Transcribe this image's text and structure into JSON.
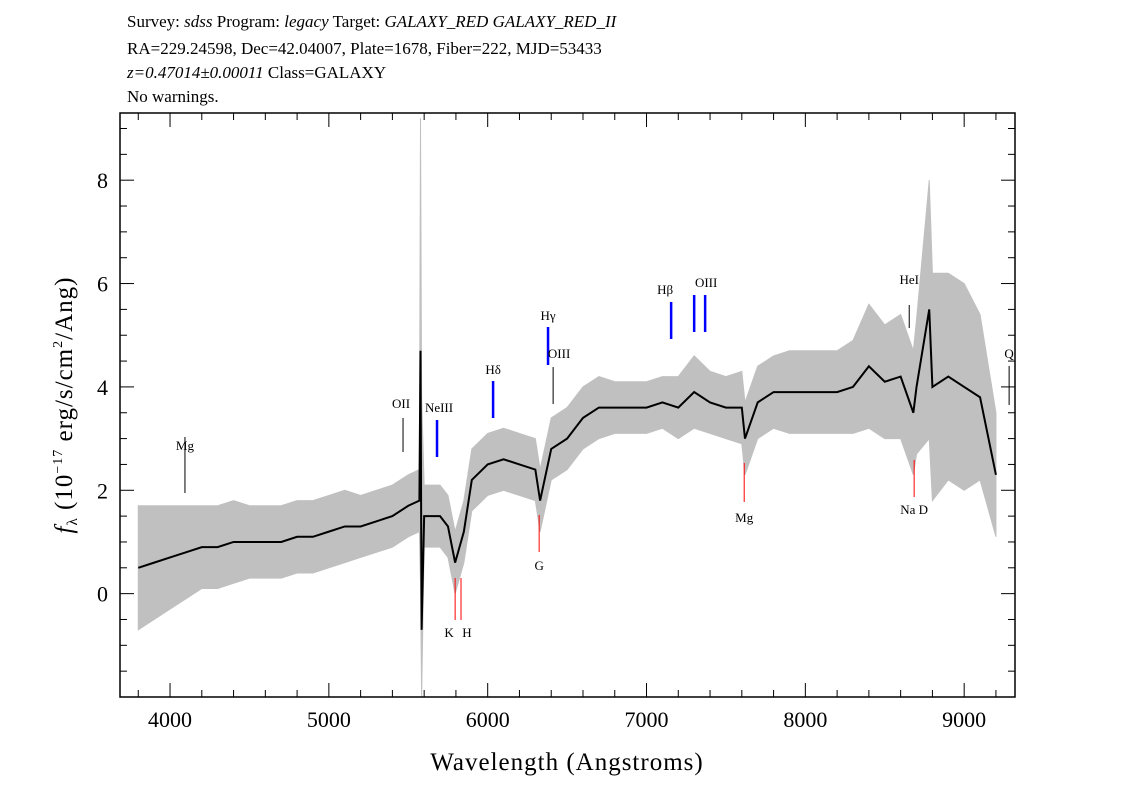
{
  "header": {
    "line1": {
      "survey_label": "Survey:",
      "survey": "sdss",
      "program_label": "Program:",
      "program": "legacy",
      "target_label": "Target:",
      "target": "GALAXY_RED GALAXY_RED_II"
    },
    "line2": "RA=229.24598, Dec=42.04007, Plate=1678, Fiber=222, MJD=53433",
    "line3": {
      "redshift": "z=0.47014±0.00011",
      "class": "Class=GALAXY"
    },
    "line4": "No warnings."
  },
  "chart_data": {
    "type": "line",
    "xlabel": "Wavelength (Angstroms)",
    "ylabel": "f_λ (10^-17 erg/s/cm^2/Ang)",
    "xlim": [
      3685,
      9320
    ],
    "ylim": [
      -2.0,
      9.3
    ],
    "xticks": [
      4000,
      5000,
      6000,
      7000,
      8000,
      9000
    ],
    "yticks": [
      0,
      2,
      4,
      6,
      8
    ],
    "grid": false,
    "series": [
      {
        "role": "flux",
        "color": "#000000",
        "x": [
          3800,
          3900,
          4000,
          4100,
          4200,
          4300,
          4400,
          4500,
          4600,
          4700,
          4800,
          4900,
          5000,
          5100,
          5200,
          5300,
          5400,
          5500,
          5570,
          5577,
          5584,
          5600,
          5700,
          5750,
          5795,
          5850,
          5900,
          6000,
          6100,
          6200,
          6300,
          6330,
          6400,
          6500,
          6600,
          6700,
          6800,
          6900,
          7000,
          7100,
          7200,
          7300,
          7400,
          7500,
          7600,
          7620,
          7700,
          7800,
          7900,
          8000,
          8100,
          8200,
          8300,
          8400,
          8500,
          8600,
          8680,
          8700,
          8780,
          8800,
          8900,
          9000,
          9100,
          9200
        ],
        "y": [
          0.5,
          0.6,
          0.7,
          0.8,
          0.9,
          0.9,
          1.0,
          1.0,
          1.0,
          1.0,
          1.1,
          1.1,
          1.2,
          1.3,
          1.3,
          1.4,
          1.5,
          1.7,
          1.8,
          4.7,
          -0.7,
          1.5,
          1.5,
          1.3,
          0.6,
          1.2,
          2.2,
          2.5,
          2.6,
          2.5,
          2.4,
          1.8,
          2.8,
          3.0,
          3.4,
          3.6,
          3.6,
          3.6,
          3.6,
          3.7,
          3.6,
          3.9,
          3.7,
          3.6,
          3.6,
          3.0,
          3.7,
          3.9,
          3.9,
          3.9,
          3.9,
          3.9,
          4.0,
          4.4,
          4.1,
          4.2,
          3.5,
          4.0,
          5.5,
          4.0,
          4.2,
          4.0,
          3.8,
          2.3
        ]
      },
      {
        "role": "error",
        "color": "#c0c0c0",
        "sigma": [
          1.2,
          1.1,
          1.0,
          0.9,
          0.8,
          0.8,
          0.8,
          0.7,
          0.7,
          0.7,
          0.7,
          0.7,
          0.7,
          0.7,
          0.6,
          0.6,
          0.6,
          0.6,
          0.6,
          4.5,
          4.5,
          0.6,
          0.6,
          0.6,
          0.6,
          0.6,
          0.6,
          0.6,
          0.6,
          0.6,
          0.6,
          0.6,
          0.6,
          0.6,
          0.6,
          0.6,
          0.5,
          0.5,
          0.5,
          0.5,
          0.6,
          0.7,
          0.6,
          0.6,
          0.7,
          0.7,
          0.7,
          0.7,
          0.8,
          0.8,
          0.8,
          0.8,
          0.9,
          1.2,
          1.1,
          1.2,
          1.2,
          1.3,
          2.5,
          2.2,
          2.0,
          2.0,
          1.6,
          1.2
        ]
      }
    ],
    "line_markers": [
      {
        "label": "Mg",
        "wavelength": 4094,
        "color": "#000000"
      },
      {
        "label": "OII",
        "wavelength": 5467,
        "color": "#000000"
      },
      {
        "label": "NeIII",
        "wavelength": 5681,
        "color": "#0000ff"
      },
      {
        "label": "Hδ",
        "wavelength": 6034,
        "color": "#0000ff"
      },
      {
        "label": "Hγ",
        "wavelength": 6380,
        "color": "#0000ff"
      },
      {
        "label": "OIII",
        "wavelength": 6412,
        "color": "#000000"
      },
      {
        "label": "Hβ",
        "wavelength": 7155,
        "color": "#0000ff"
      },
      {
        "label": "OIII",
        "wavelength": 7300,
        "color": "#0000ff"
      },
      {
        "label": "",
        "wavelength": 7369,
        "color": "#0000ff"
      },
      {
        "label": "HeI",
        "wavelength": 8654,
        "color": "#000000"
      },
      {
        "label": "Q",
        "wavelength": 9283,
        "color": "#000000"
      },
      {
        "label": "K",
        "wavelength": 5795,
        "color": "#ff0000"
      },
      {
        "label": "H",
        "wavelength": 5832,
        "color": "#ff0000"
      },
      {
        "label": "G",
        "wavelength": 6324,
        "color": "#ff0000"
      },
      {
        "label": "Mg",
        "wavelength": 7615,
        "color": "#ff0000"
      },
      {
        "label": "Na  D",
        "wavelength": 8685,
        "color": "#ff0000"
      }
    ]
  }
}
